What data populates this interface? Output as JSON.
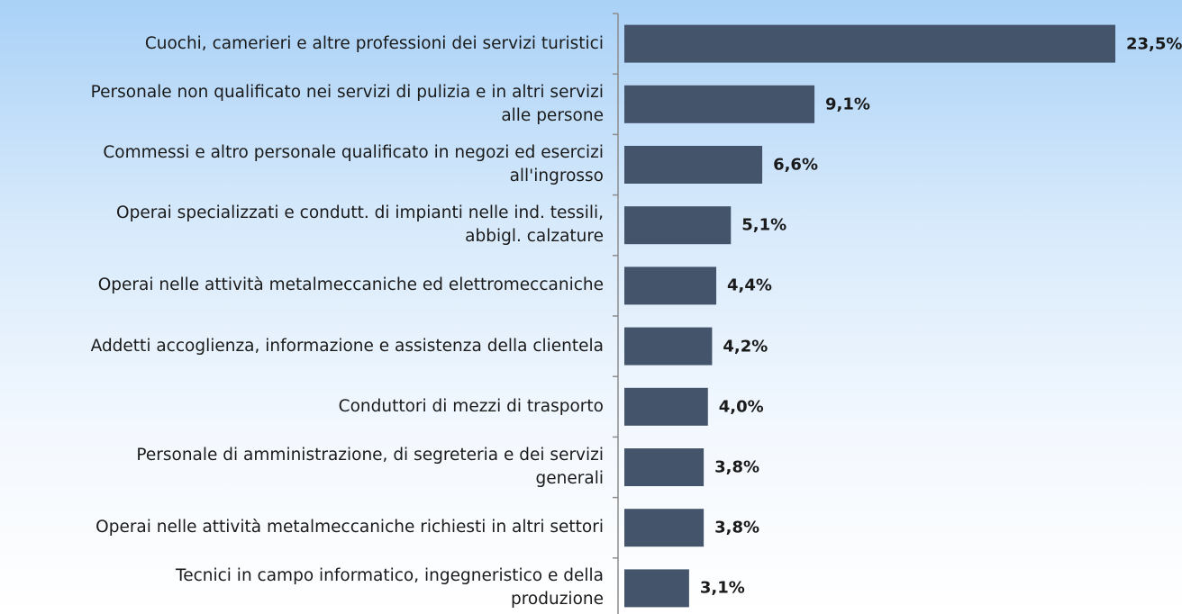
{
  "chart_data": {
    "type": "hbar",
    "categories": [
      "Cuochi, camerieri e altre professioni dei servizi turistici",
      "Personale non qualificato nei servizi di pulizia e in altri servizi\nalle persone",
      "Commessi e altro personale qualificato in negozi ed esercizi\nall'ingrosso",
      "Operai specializzati e condutt. di impianti nelle ind. tessili,\nabbigl. calzature",
      "Operai nelle attività metalmeccaniche ed elettromeccaniche",
      "Addetti accoglienza, informazione e assistenza della clientela",
      "Conduttori di mezzi di trasporto",
      "Personale di amministrazione, di segreteria e dei servizi\ngenerali",
      "Operai nelle attività metalmeccaniche richiesti in altri settori",
      "Tecnici in campo informatico, ingegneristico e della\nproduzione"
    ],
    "values": [
      23.5,
      9.1,
      6.6,
      5.1,
      4.4,
      4.2,
      4.0,
      3.8,
      3.8,
      3.1
    ],
    "value_labels": [
      "23,5%",
      "9,1%",
      "6,6%",
      "5,1%",
      "4,4%",
      "4,2%",
      "4,0%",
      "3,8%",
      "3,8%",
      "3,1%"
    ],
    "color": "#44546a"
  }
}
